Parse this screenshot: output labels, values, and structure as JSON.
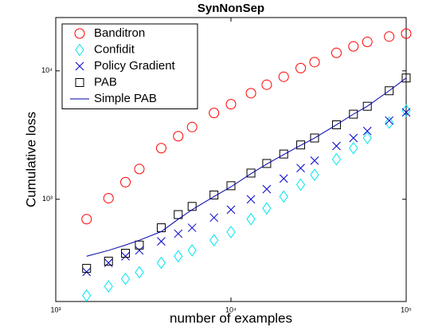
{
  "chart_data": {
    "type": "scatter",
    "title": "SynNonSep",
    "xlabel": "number of examples",
    "ylabel": "Cumulative loss",
    "xscale": "log",
    "yscale": "log",
    "legend": "upper left",
    "xlim": [
      1000,
      100000
    ],
    "ylim": [
      160,
      26000
    ],
    "xticks": [
      {
        "value": 1000,
        "label": "10³"
      },
      {
        "value": 10000,
        "label": "10⁴"
      },
      {
        "value": 100000,
        "label": "10⁵"
      }
    ],
    "yticks": [
      {
        "value": 1000,
        "label": "10³"
      },
      {
        "value": 10000,
        "label": "10⁴"
      }
    ],
    "x": [
      1500,
      2000,
      2500,
      3000,
      4000,
      5000,
      6000,
      8000,
      10000,
      13000,
      16000,
      20000,
      25000,
      30000,
      40000,
      50000,
      60000,
      80000,
      100000
    ],
    "series": [
      {
        "name": "Banditron",
        "color": "#ff0000",
        "marker": "o",
        "values": [
          700,
          1020,
          1360,
          1720,
          2500,
          3100,
          3650,
          4700,
          5500,
          6700,
          7800,
          9000,
          10500,
          11700,
          13800,
          15500,
          16800,
          18500,
          19500
        ]
      },
      {
        "name": "Confidit",
        "color": "#00e5ee",
        "marker": "d",
        "values": [
          178,
          210,
          240,
          270,
          320,
          360,
          400,
          480,
          556,
          700,
          850,
          1050,
          1300,
          1550,
          2050,
          2500,
          3000,
          3950,
          4900
        ]
      },
      {
        "name": "Policy Gradient",
        "color": "#0000cc",
        "marker": "x",
        "values": [
          272,
          320,
          360,
          400,
          470,
          540,
          600,
          720,
          830,
          1000,
          1200,
          1450,
          1750,
          2000,
          2600,
          3000,
          3400,
          4100,
          4750
        ]
      },
      {
        "name": "PAB",
        "color": "#000000",
        "marker": "s",
        "values": [
          290,
          330,
          380,
          440,
          600,
          760,
          880,
          1080,
          1275,
          1600,
          1900,
          2250,
          2650,
          3000,
          3800,
          4600,
          5300,
          7000,
          8800
        ]
      },
      {
        "name": "Simple PAB",
        "color": "#0000aa",
        "marker": "line",
        "values": [
          360,
          400,
          440,
          480,
          560,
          700,
          830,
          1050,
          1250,
          1580,
          1880,
          2230,
          2630,
          3000,
          3800,
          4600,
          5300,
          7000,
          8800
        ]
      }
    ]
  }
}
